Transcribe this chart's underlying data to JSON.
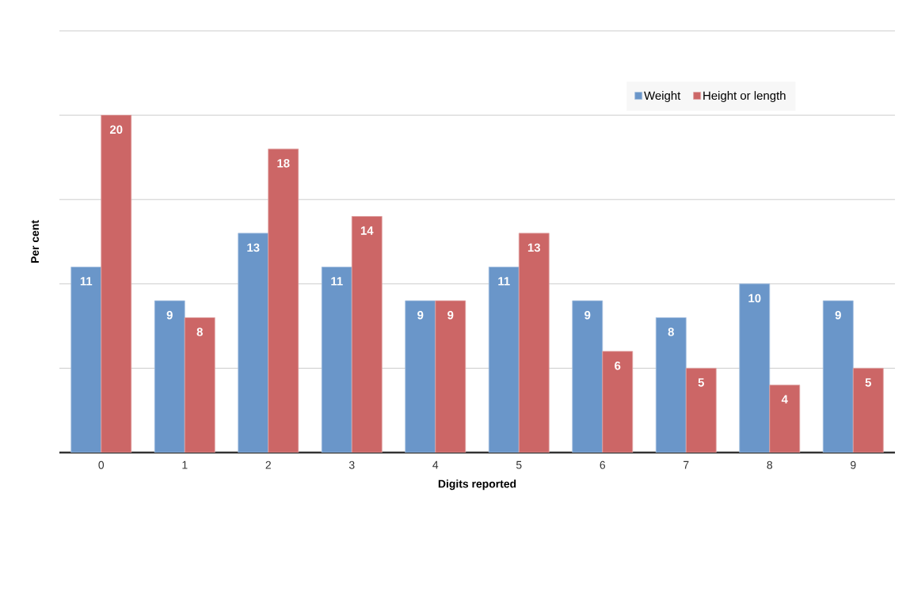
{
  "chart_data": {
    "type": "bar",
    "xlabel": "Digits reported",
    "ylabel": "Per cent",
    "categories": [
      "0",
      "1",
      "2",
      "3",
      "4",
      "5",
      "6",
      "7",
      "8",
      "9"
    ],
    "series": [
      {
        "name": "Weight",
        "color": "#6a96c9",
        "values": [
          11,
          9,
          13,
          11,
          9,
          11,
          9,
          8,
          10,
          9
        ]
      },
      {
        "name": "Height or length",
        "color": "#cc6666",
        "values": [
          20,
          8,
          18,
          14,
          9,
          13,
          6,
          5,
          4,
          5
        ]
      }
    ],
    "ylim": [
      0,
      25
    ],
    "yticks": [
      {
        "value": 0,
        "label": null
      },
      {
        "value": 5,
        "label": null
      },
      {
        "value": 10,
        "label": null
      },
      {
        "value": 15,
        "label": null
      },
      {
        "value": 20,
        "label": null
      },
      {
        "value": 25,
        "label": null
      }
    ],
    "tick_labels": "x",
    "grid": "y",
    "legend": "top right",
    "data_labels": true
  }
}
